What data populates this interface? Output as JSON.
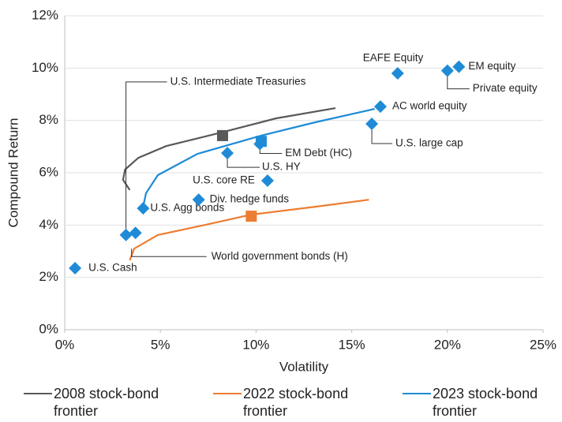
{
  "chart_data": {
    "type": "scatter",
    "xlabel": "Volatility",
    "ylabel": "Compound Return",
    "xlim": [
      0,
      25
    ],
    "ylim": [
      0,
      12
    ],
    "xticks": [
      {
        "value": 0,
        "label": "0%"
      },
      {
        "value": 5,
        "label": "5%"
      },
      {
        "value": 10,
        "label": "10%"
      },
      {
        "value": 15,
        "label": "15%"
      },
      {
        "value": 20,
        "label": "20%"
      },
      {
        "value": 25,
        "label": "25%"
      }
    ],
    "yticks": [
      {
        "value": 0,
        "label": "0%"
      },
      {
        "value": 2,
        "label": "2%"
      },
      {
        "value": 4,
        "label": "4%"
      },
      {
        "value": 6,
        "label": "6%"
      },
      {
        "value": 8,
        "label": "8%"
      },
      {
        "value": 10,
        "label": "10%"
      },
      {
        "value": 12,
        "label": "12%"
      }
    ],
    "point_color": "#1f8bd6",
    "points": [
      {
        "name": "U.S. Cash",
        "x": 0.54,
        "y": 2.35
      },
      {
        "name": "U.S. Intermediate Treasuries",
        "x": 3.2,
        "y": 3.62
      },
      {
        "name": "World government bonds (H)",
        "x": 3.7,
        "y": 3.7
      },
      {
        "name": "U.S. Agg bonds",
        "x": 4.1,
        "y": 4.64
      },
      {
        "name": "Div. hedge funds",
        "x": 7.0,
        "y": 4.97
      },
      {
        "name": "U.S. HY",
        "x": 8.5,
        "y": 6.75
      },
      {
        "name": "EM Debt (HC)",
        "x": 10.2,
        "y": 7.1
      },
      {
        "name": "U.S. core RE",
        "x": 10.6,
        "y": 5.7
      },
      {
        "name": "U.S. large cap",
        "x": 16.05,
        "y": 7.87
      },
      {
        "name": "AC world equity",
        "x": 16.5,
        "y": 8.53
      },
      {
        "name": "EAFE Equity",
        "x": 17.4,
        "y": 9.8
      },
      {
        "name": "Private equity",
        "x": 20.0,
        "y": 9.9
      },
      {
        "name": "EM equity",
        "x": 20.6,
        "y": 10.05
      }
    ],
    "series": [
      {
        "name": "2008 stock-bond frontier",
        "color": "#595959",
        "x": [
          3.4,
          3.05,
          3.15,
          3.85,
          5.3,
          8.25,
          11.05,
          14.15
        ],
        "y": [
          5.34,
          5.73,
          6.12,
          6.57,
          7.02,
          7.55,
          8.08,
          8.47
        ],
        "optimal": [
          8.25,
          7.42
        ]
      },
      {
        "name": "2022 stock-bond frontier",
        "color": "#ed7d31",
        "x": [
          3.4,
          3.63,
          4.87,
          7.3,
          9.75,
          13.1,
          15.9
        ],
        "y": [
          2.65,
          3.1,
          3.62,
          4.0,
          4.4,
          4.7,
          4.97
        ],
        "optimal": [
          9.75,
          4.34
        ]
      },
      {
        "name": "2023 stock-bond frontier",
        "color": "#1f8bd6",
        "x": [
          4.1,
          4.25,
          4.87,
          6.93,
          10.27,
          13.1,
          16.2
        ],
        "y": [
          4.7,
          5.22,
          5.91,
          6.72,
          7.42,
          7.93,
          8.44
        ],
        "optimal": [
          10.27,
          7.2
        ]
      }
    ]
  }
}
